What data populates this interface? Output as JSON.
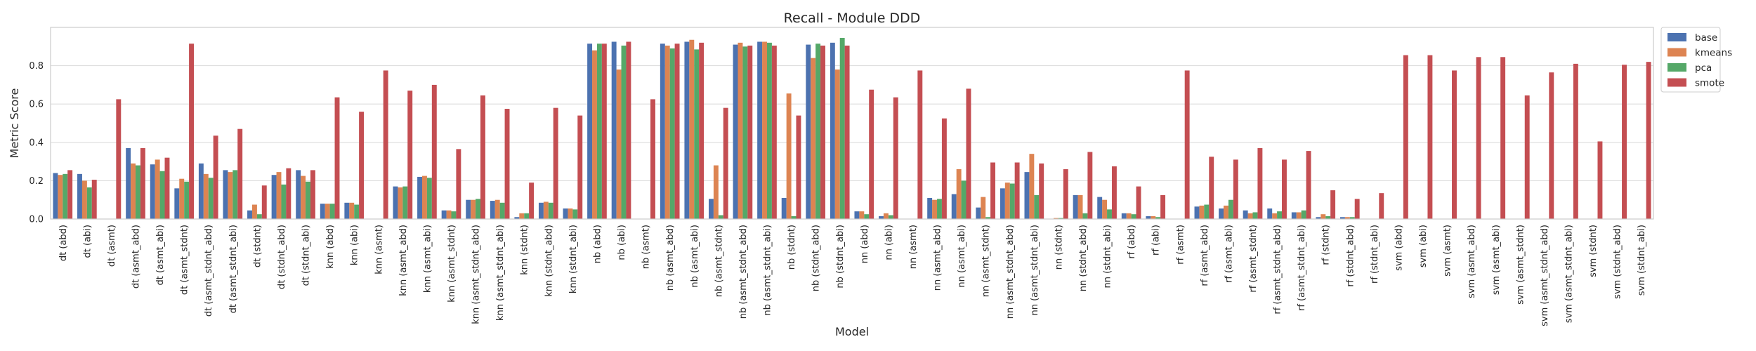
{
  "chart_data": {
    "type": "bar",
    "title": "Recall - Module DDD",
    "xlabel": "Model",
    "ylabel": "Metric Score",
    "ylim": [
      0,
      1.0
    ],
    "yticks": [
      0.0,
      0.2,
      0.4,
      0.6,
      0.8
    ],
    "ytick_labels": [
      "0.0",
      "0.2",
      "0.4",
      "0.6",
      "0.8"
    ],
    "grid": true,
    "legend_position": "outside-top-right",
    "categories": [
      "dt (abd)",
      "dt (abi)",
      "dt (asmt)",
      "dt (asmt_abd)",
      "dt (asmt_abi)",
      "dt (asmt_stdnt)",
      "dt (asmt_stdnt_abd)",
      "dt (asmt_stdnt_abi)",
      "dt (stdnt)",
      "dt (stdnt_abd)",
      "dt (stdnt_abi)",
      "knn (abd)",
      "knn (abi)",
      "knn (asmt)",
      "knn (asmt_abd)",
      "knn (asmt_abi)",
      "knn (asmt_stdnt)",
      "knn (asmt_stdnt_abd)",
      "knn (asmt_stdnt_abi)",
      "knn (stdnt)",
      "knn (stdnt_abd)",
      "knn (stdnt_abi)",
      "nb (abd)",
      "nb (abi)",
      "nb (asmt)",
      "nb (asmt_abd)",
      "nb (asmt_abi)",
      "nb (asmt_stdnt)",
      "nb (asmt_stdnt_abd)",
      "nb (asmt_stdnt_abi)",
      "nb (stdnt)",
      "nb (stdnt_abd)",
      "nb (stdnt_abi)",
      "nn (abd)",
      "nn (abi)",
      "nn (asmt)",
      "nn (asmt_abd)",
      "nn (asmt_abi)",
      "nn (asmt_stdnt)",
      "nn (asmt_stdnt_abd)",
      "nn (asmt_stdnt_abi)",
      "nn (stdnt)",
      "nn (stdnt_abd)",
      "nn (stdnt_abi)",
      "rf (abd)",
      "rf (abi)",
      "rf (asmt)",
      "rf (asmt_abd)",
      "rf (asmt_abi)",
      "rf (asmt_stdnt)",
      "rf (asmt_stdnt_abd)",
      "rf (asmt_stdnt_abi)",
      "rf (stdnt)",
      "rf (stdnt_abd)",
      "rf (stdnt_abi)",
      "svm (abd)",
      "svm (abi)",
      "svm (asmt)",
      "svm (asmt_abd)",
      "svm (asmt_abi)",
      "svm (asmt_stdnt)",
      "svm (asmt_stdnt_abd)",
      "svm (asmt_stdnt_abi)",
      "svm (stdnt)",
      "svm (stdnt_abd)",
      "svm (stdnt_abi)"
    ],
    "series": [
      {
        "name": "base",
        "color": "#4c72b0",
        "values": [
          0.24,
          0.235,
          0,
          0.37,
          0.285,
          0.16,
          0.29,
          0.255,
          0.045,
          0.23,
          0.255,
          0.08,
          0.085,
          0,
          0.17,
          0.22,
          0.045,
          0.1,
          0.095,
          0.01,
          0.085,
          0.055,
          0.915,
          0.925,
          0,
          0.915,
          0.925,
          0.105,
          0.91,
          0.925,
          0.11,
          0.91,
          0.92,
          0.04,
          0.015,
          0,
          0.11,
          0.13,
          0.06,
          0.16,
          0.245,
          0,
          0.125,
          0.115,
          0.03,
          0.015,
          0,
          0.065,
          0.055,
          0.045,
          0.055,
          0.035,
          0.01,
          0.01,
          0,
          0,
          0,
          0,
          0,
          0,
          0,
          0,
          0,
          0,
          0,
          0
        ]
      },
      {
        "name": "kmeans",
        "color": "#dd8452",
        "values": [
          0.23,
          0.2,
          0,
          0.29,
          0.31,
          0.21,
          0.235,
          0.245,
          0.075,
          0.245,
          0.225,
          0.08,
          0.085,
          0,
          0.165,
          0.225,
          0.045,
          0.1,
          0.1,
          0.03,
          0.09,
          0.055,
          0.88,
          0.78,
          0,
          0.905,
          0.935,
          0.28,
          0.92,
          0.925,
          0.655,
          0.84,
          0.78,
          0.04,
          0.03,
          0,
          0.1,
          0.26,
          0.115,
          0.19,
          0.34,
          0.005,
          0.125,
          0.1,
          0.03,
          0.015,
          0,
          0.07,
          0.07,
          0.03,
          0.03,
          0.035,
          0.025,
          0.01,
          0,
          0,
          0,
          0,
          0,
          0,
          0,
          0,
          0,
          0,
          0,
          0
        ]
      },
      {
        "name": "pca",
        "color": "#55a868",
        "values": [
          0.235,
          0.165,
          0,
          0.28,
          0.25,
          0.195,
          0.215,
          0.255,
          0.025,
          0.18,
          0.195,
          0.08,
          0.075,
          0,
          0.17,
          0.215,
          0.04,
          0.105,
          0.085,
          0.03,
          0.085,
          0.05,
          0.915,
          0.905,
          0,
          0.89,
          0.885,
          0.02,
          0.9,
          0.92,
          0.015,
          0.915,
          0.945,
          0.025,
          0.02,
          0,
          0.105,
          0.2,
          0.01,
          0.185,
          0.125,
          0.005,
          0.03,
          0.05,
          0.025,
          0.01,
          0,
          0.075,
          0.1,
          0.035,
          0.04,
          0.045,
          0.015,
          0.01,
          0,
          0,
          0,
          0,
          0,
          0,
          0,
          0,
          0,
          0,
          0,
          0
        ]
      },
      {
        "name": "smote",
        "color": "#c44e52",
        "values": [
          0.255,
          0.205,
          0.625,
          0.37,
          0.32,
          0.915,
          0.435,
          0.47,
          0.175,
          0.265,
          0.255,
          0.635,
          0.56,
          0.775,
          0.67,
          0.7,
          0.365,
          0.645,
          0.575,
          0.19,
          0.58,
          0.54,
          0.915,
          0.925,
          0.625,
          0.915,
          0.92,
          0.58,
          0.905,
          0.905,
          0.54,
          0.905,
          0.905,
          0.675,
          0.635,
          0.775,
          0.525,
          0.68,
          0.295,
          0.295,
          0.29,
          0.26,
          0.35,
          0.275,
          0.17,
          0.125,
          0.775,
          0.325,
          0.31,
          0.37,
          0.31,
          0.355,
          0.15,
          0.105,
          0.135,
          0.855,
          0.855,
          0.775,
          0.845,
          0.845,
          0.645,
          0.765,
          0.81,
          0.405,
          0.805,
          0.82
        ]
      }
    ]
  },
  "legend": {
    "items": [
      {
        "label": "base",
        "color": "#4c72b0"
      },
      {
        "label": "kmeans",
        "color": "#dd8452"
      },
      {
        "label": "pca",
        "color": "#55a868"
      },
      {
        "label": "smote",
        "color": "#c44e52"
      }
    ]
  }
}
